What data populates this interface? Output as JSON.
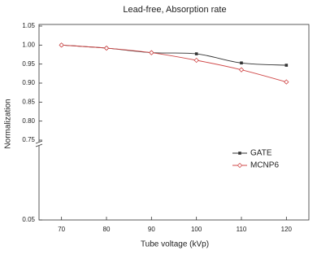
{
  "chart_data": {
    "type": "line",
    "title": "Lead-free, Absorption rate",
    "x_label": "Tube voltage (kVp)",
    "y_label": "Normalization",
    "x": [
      70,
      80,
      90,
      100,
      110,
      120
    ],
    "series": [
      {
        "name": "GATE",
        "color": "#333333",
        "marker": "square",
        "values": [
          1.0,
          0.992,
          0.98,
          0.977,
          0.953,
          0.947
        ]
      },
      {
        "name": "MCNP6",
        "color": "#d04848",
        "marker": "diamond",
        "values": [
          1.0,
          0.992,
          0.98,
          0.96,
          0.935,
          0.903
        ]
      }
    ],
    "xlim": [
      65,
      125
    ],
    "xticks": [
      70,
      80,
      90,
      100,
      110,
      120
    ],
    "ylim": [
      0.05,
      1.05
    ],
    "y_break": [
      0.05,
      0.75
    ],
    "yticks": [
      1.05,
      {
        "value": 1,
        "label": "1.00"
      },
      0.95,
      {
        "value": 0.9,
        "label": "0.90"
      },
      0.85,
      {
        "value": 0.8,
        "label": "0.80"
      },
      0.75,
      0.05
    ],
    "legend": "right"
  }
}
